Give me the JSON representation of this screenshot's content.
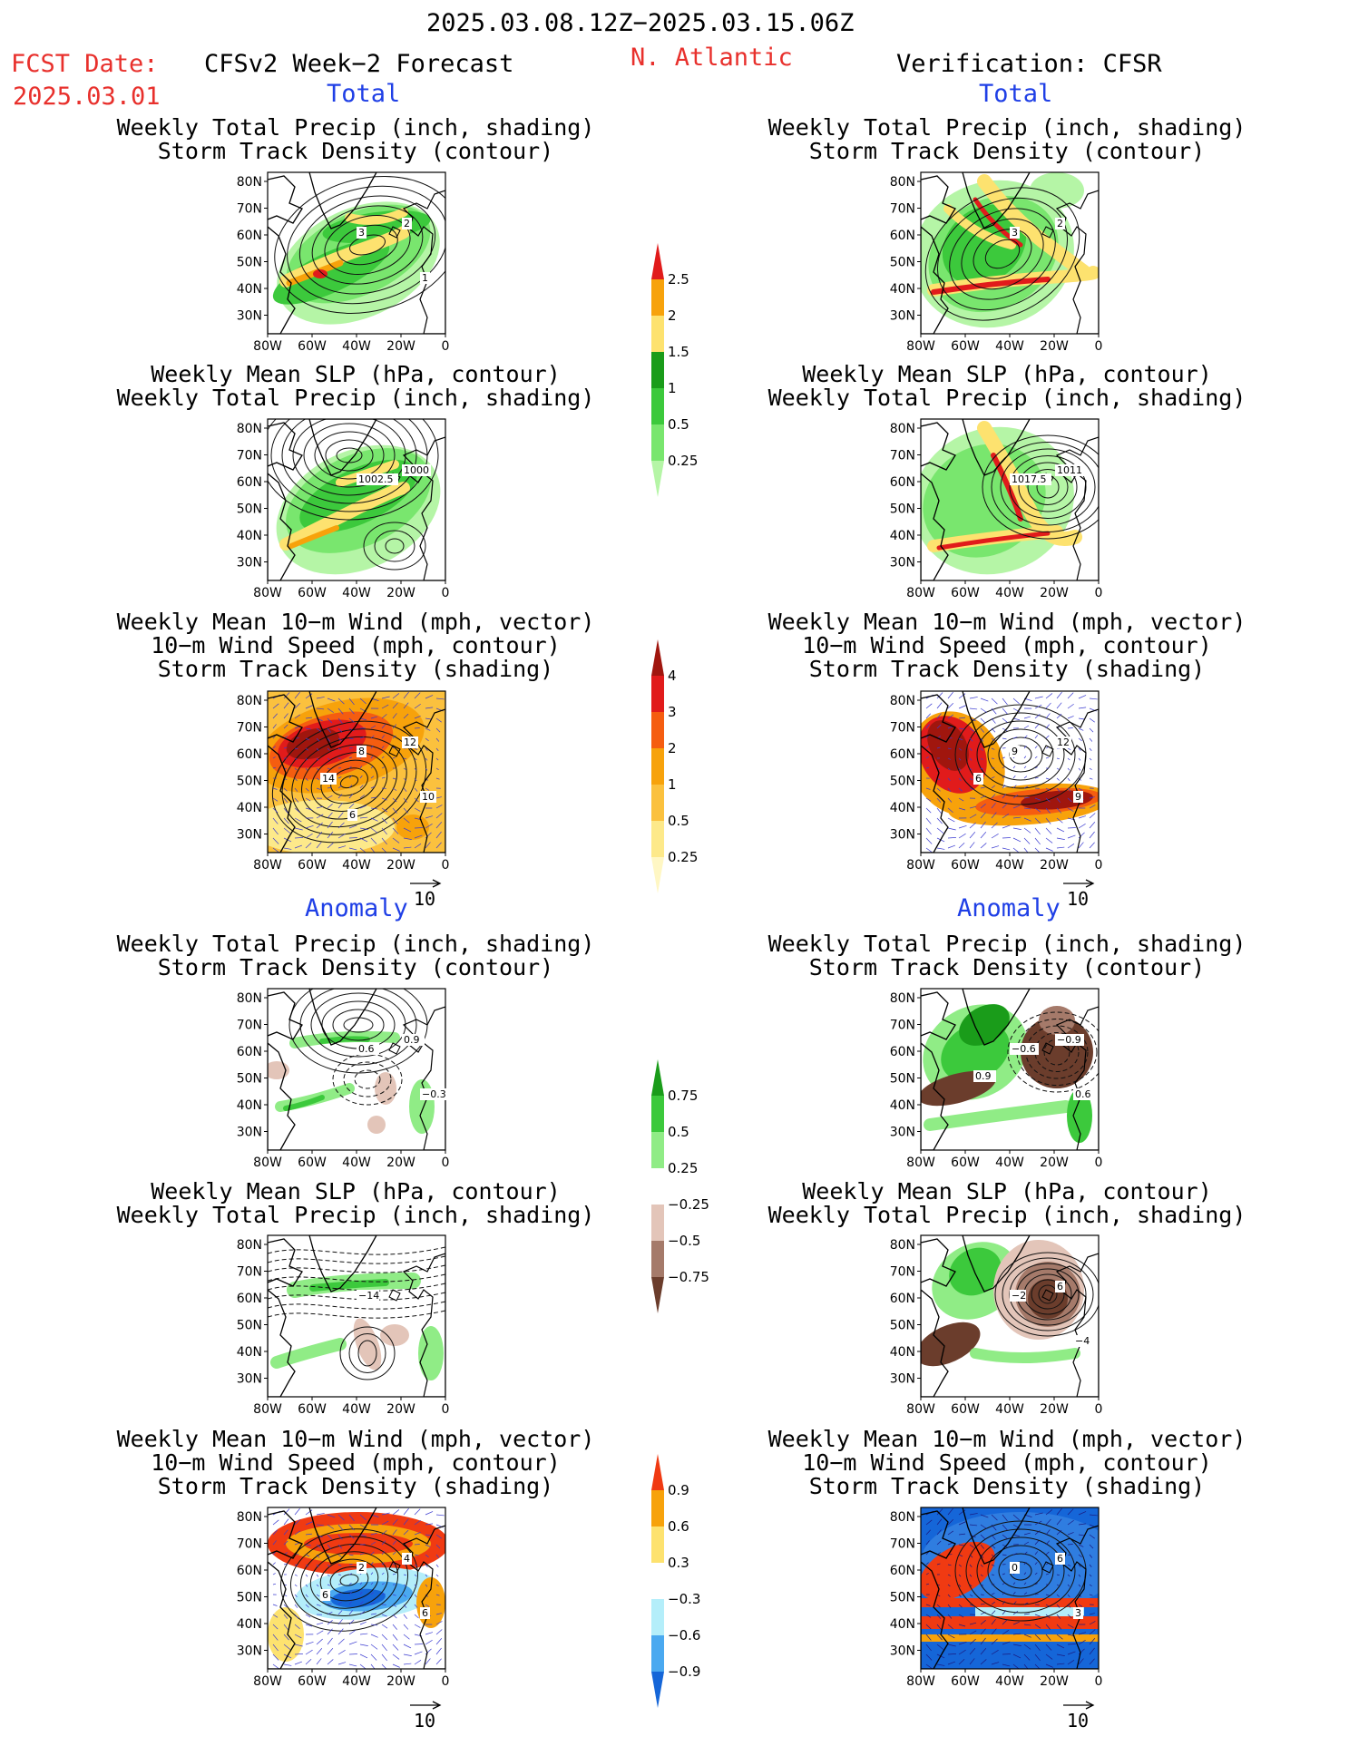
{
  "header": {
    "period": "2025.03.08.12Z−2025.03.15.06Z",
    "fcst_date_label": "FCST Date:",
    "fcst_date": "2025.03.01",
    "model": "CFSv2 Week−2 Forecast",
    "region": "N. Atlantic",
    "verification": "Verification: CFSR"
  },
  "sections": {
    "total_label": "Total",
    "anomaly_label": "Anomaly"
  },
  "axes": {
    "lat_ticks": [
      "80N",
      "70N",
      "60N",
      "50N",
      "40N",
      "30N"
    ],
    "lon_ticks": [
      "80W",
      "60W",
      "40W",
      "20W",
      "0"
    ]
  },
  "vector_ref": "10",
  "panels": {
    "precip_storm": {
      "line1": "Weekly Total Precip (inch, shading)",
      "line2": "Storm Track Density (contour)"
    },
    "slp_precip": {
      "line1": "Weekly Mean SLP (hPa, contour)",
      "line2": "Weekly Total Precip (inch, shading)"
    },
    "wind": {
      "line1": "Weekly Mean 10−m Wind (mph, vector)",
      "line2": "10−m Wind Speed (mph, contour)",
      "line3": "Storm Track Density (shading)"
    }
  },
  "contour_labels": {
    "f_total_precip": [
      "3",
      "2",
      "1"
    ],
    "v_total_precip": [
      "3",
      "2"
    ],
    "f_total_slp": [
      "1002.5",
      "1000"
    ],
    "v_total_slp": [
      "1017.5",
      "1011"
    ],
    "f_total_wind": [
      "8",
      "12",
      "10",
      "14",
      "6"
    ],
    "v_total_wind": [
      "9",
      "12",
      "9",
      "6"
    ],
    "f_anom_precip": [
      "0.6",
      "0.9",
      "−0.3"
    ],
    "v_anom_precip": [
      "−0.6",
      "−0.9",
      "0.6",
      "0.9"
    ],
    "f_anom_slp": [
      "−14"
    ],
    "v_anom_slp": [
      "−2",
      "6",
      "−4"
    ],
    "f_anom_wind": [
      "2",
      "4",
      "6",
      "6"
    ],
    "v_anom_wind": [
      "0",
      "6",
      "3"
    ]
  },
  "colorbars": {
    "total_precip": {
      "labels": [
        "2.5",
        "2",
        "1.5",
        "1",
        "0.5",
        "0.25"
      ],
      "colors": [
        "#e11b1b",
        "#f7a20b",
        "#fde26f",
        "#1a9c1a",
        "#3cc93c",
        "#79e66e",
        "#b5f5a6"
      ]
    },
    "total_storm": {
      "labels": [
        "4",
        "3",
        "2",
        "1",
        "0.5",
        "0.25"
      ],
      "colors": [
        "#a0160e",
        "#e11b1b",
        "#f55d10",
        "#f7a20b",
        "#fbc13e",
        "#fde98a",
        "#fff7c4"
      ]
    },
    "anom_precip": {
      "labels": [
        "0.75",
        "0.5",
        "0.25",
        "−0.25",
        "−0.5",
        "−0.75"
      ],
      "colors": [
        "#1a9c1a",
        "#3cc93c",
        "#90ec86",
        "#ffffff",
        "#e3c5b9",
        "#a57a6a",
        "#6b3d2c"
      ]
    },
    "anom_storm": {
      "labels": [
        "0.9",
        "0.6",
        "0.3",
        "−0.3",
        "−0.6",
        "−0.9"
      ],
      "colors": [
        "#f03a12",
        "#f7a20b",
        "#fde26f",
        "#ffffff",
        "#b4eefa",
        "#4aa9f0",
        "#1566d8"
      ]
    }
  }
}
